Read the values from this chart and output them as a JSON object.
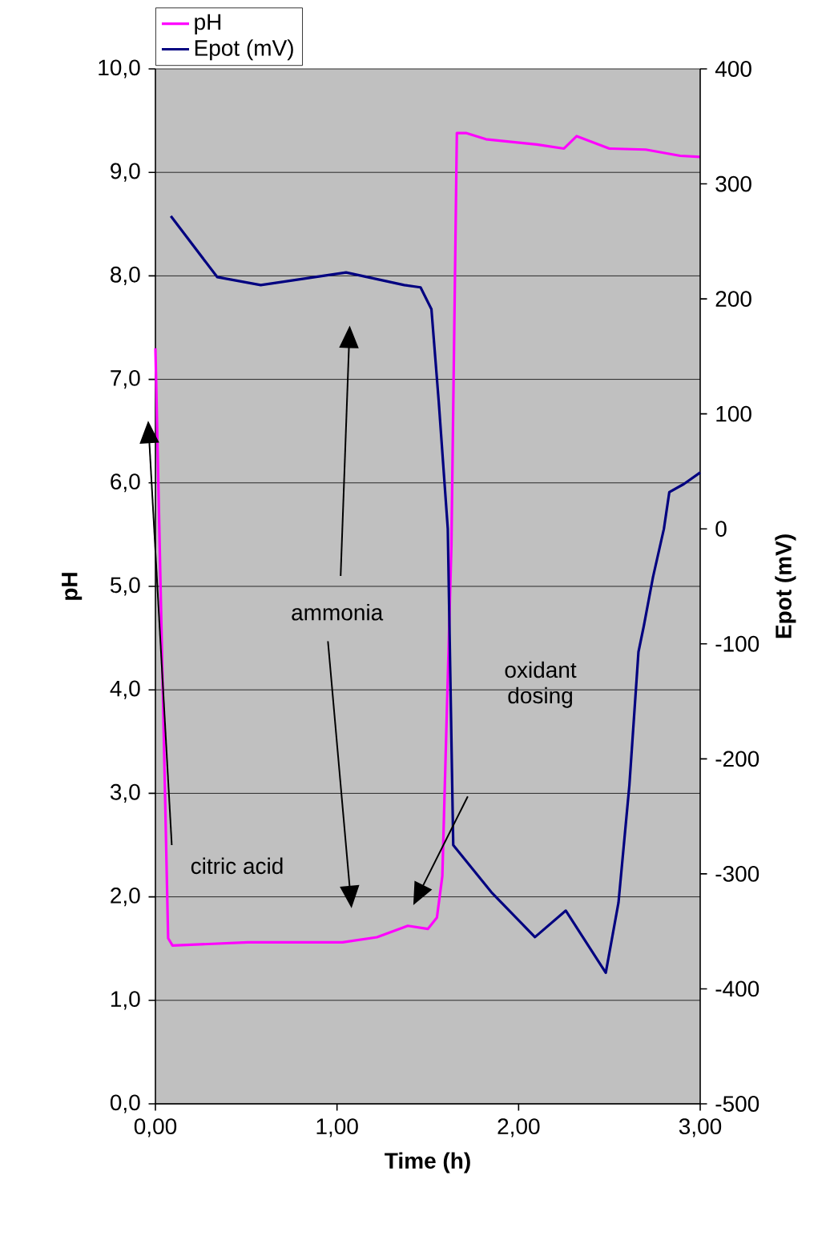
{
  "chart_data": {
    "type": "line",
    "xlabel": "Time (h)",
    "ylabel": "pH",
    "y2label": "Epot (mV)",
    "xlim": [
      0,
      3
    ],
    "xticks": [
      {
        "value": 0,
        "label": "0,00"
      },
      {
        "value": 1,
        "label": "1,00"
      },
      {
        "value": 2,
        "label": "2,00"
      },
      {
        "value": 3,
        "label": "3,00"
      }
    ],
    "ylim": [
      0,
      10
    ],
    "yticks": [
      {
        "value": 0,
        "label": "0,0"
      },
      {
        "value": 1,
        "label": "1,0"
      },
      {
        "value": 2,
        "label": "2,0"
      },
      {
        "value": 3,
        "label": "3,0"
      },
      {
        "value": 4,
        "label": "4,0"
      },
      {
        "value": 5,
        "label": "5,0"
      },
      {
        "value": 6,
        "label": "6,0"
      },
      {
        "value": 7,
        "label": "7,0"
      },
      {
        "value": 8,
        "label": "8,0"
      },
      {
        "value": 9,
        "label": "9,0"
      },
      {
        "value": 10,
        "label": "10,0"
      }
    ],
    "y2lim": [
      -500,
      400
    ],
    "y2ticks": [
      -500,
      -400,
      -300,
      -200,
      -100,
      0,
      100,
      200,
      300,
      400
    ],
    "grid": "y",
    "legend": "top left",
    "marker": "none",
    "line_style": "solid",
    "series": [
      {
        "name": "pH",
        "color": "#ff00ff",
        "x": [
          0,
          0.07,
          0.094,
          0.51,
          1.03,
          1.22,
          1.39,
          1.5,
          1.55,
          1.58,
          1.63,
          1.66,
          1.71,
          1.82,
          2.1,
          2.25,
          2.32,
          2.5,
          2.7,
          2.89,
          3.0
        ],
        "values": [
          7.3,
          1.6,
          1.53,
          1.56,
          1.56,
          1.61,
          1.72,
          1.69,
          1.8,
          2.2,
          5.4,
          9.38,
          9.38,
          9.32,
          9.27,
          9.23,
          9.35,
          9.23,
          9.22,
          9.16,
          9.15
        ]
      },
      {
        "name": "Epot (mV)",
        "color": "#000080",
        "axis": "y2",
        "x": [
          0.085,
          0.34,
          0.58,
          1.05,
          1.37,
          1.46,
          1.52,
          1.56,
          1.61,
          1.64,
          1.85,
          2.09,
          2.26,
          2.48,
          2.55,
          2.61,
          2.66,
          2.69,
          2.74,
          2.8,
          2.83,
          2.91,
          3.0
        ],
        "values": [
          272,
          219,
          212,
          223,
          212,
          210,
          191,
          111,
          0,
          -275,
          -316,
          -355,
          -332,
          -386,
          -325,
          -223,
          -107,
          -84,
          -42,
          0,
          32,
          39,
          49
        ]
      }
    ],
    "annotations": [
      "ammonia",
      "oxidant dosing",
      "citric acid"
    ]
  }
}
